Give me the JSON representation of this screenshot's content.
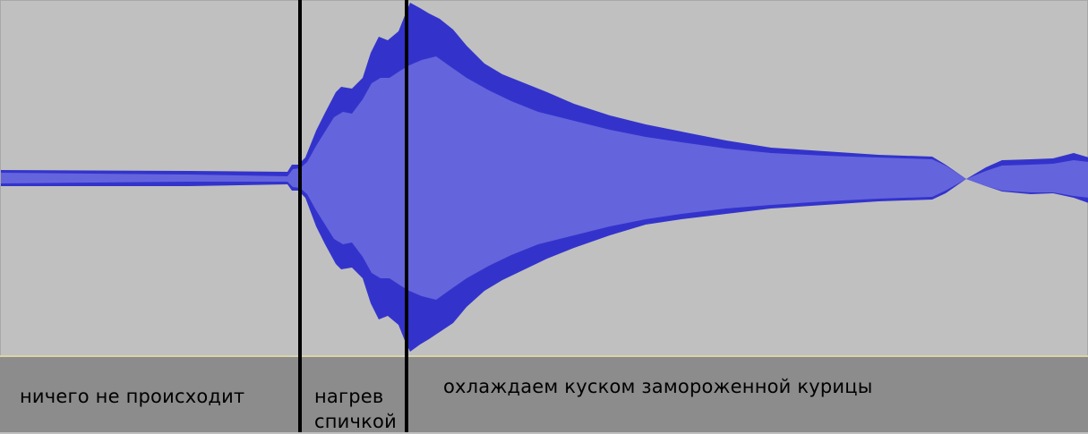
{
  "labels": {
    "segment_1": "ничего не происходит",
    "segment_2_line1": "нагрев",
    "segment_2_line2": "спичкой",
    "segment_3": "охлаждаем куском замороженной курицы"
  },
  "colors": {
    "waveform_background": "#c0c0c0",
    "waveform_peak": "#3333cc",
    "waveform_rms": "#6464dd",
    "label_track_background": "#8c8c8c",
    "marker": "#000000"
  }
}
